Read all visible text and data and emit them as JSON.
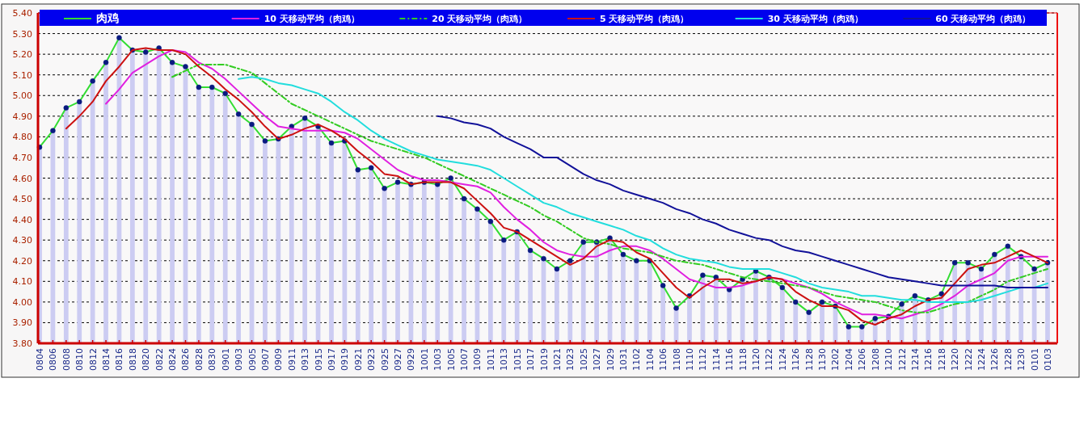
{
  "chart_data": {
    "type": "line",
    "categories": [
      "0804",
      "0806",
      "0808",
      "0810",
      "0812",
      "0814",
      "0816",
      "0818",
      "0820",
      "0822",
      "0824",
      "0826",
      "0828",
      "0830",
      "0901",
      "0903",
      "0905",
      "0907",
      "0909",
      "0911",
      "0913",
      "0915",
      "0917",
      "0919",
      "0921",
      "0923",
      "0925",
      "0927",
      "0929",
      "1001",
      "1003",
      "1005",
      "1007",
      "1009",
      "1011",
      "1013",
      "1015",
      "1017",
      "1019",
      "1021",
      "1023",
      "1025",
      "1027",
      "1029",
      "1031",
      "1102",
      "1104",
      "1106",
      "1108",
      "1110",
      "1112",
      "1114",
      "1116",
      "1118",
      "1120",
      "1122",
      "1124",
      "1126",
      "1128",
      "1130",
      "1202",
      "1204",
      "1206",
      "1208",
      "1210",
      "1212",
      "1214",
      "1216",
      "1218",
      "1220",
      "1222",
      "1224",
      "1226",
      "1228",
      "1230",
      "0101",
      "0103"
    ],
    "ylim": [
      3.8,
      5.4
    ],
    "yticks": [
      {
        "value": 3.8,
        "label": "3.80"
      },
      {
        "value": 3.9,
        "label": "3.90"
      },
      {
        "value": 4.0,
        "label": "4.00"
      },
      {
        "value": 4.1,
        "label": "4.10"
      },
      {
        "value": 4.2,
        "label": "4.20"
      },
      {
        "value": 4.3,
        "label": "4.30"
      },
      {
        "value": 4.4,
        "label": "4.40"
      },
      {
        "value": 4.5,
        "label": "4.50"
      },
      {
        "value": 4.6,
        "label": "4.60"
      },
      {
        "value": 4.7,
        "label": "4.70"
      },
      {
        "value": 4.8,
        "label": "4.80"
      },
      {
        "value": 4.9,
        "label": "4.90"
      },
      {
        "value": 5.0,
        "label": "5.00"
      },
      {
        "value": 5.1,
        "label": "5.10"
      },
      {
        "value": 5.2,
        "label": "5.20"
      },
      {
        "value": 5.3,
        "label": "5.30"
      },
      {
        "value": 5.4,
        "label": "5.40"
      }
    ],
    "grid": "y",
    "legend": "top",
    "series": [
      {
        "type": "bar",
        "color": "#ccccf2",
        "values": [
          4.75,
          4.83,
          4.94,
          4.97,
          5.07,
          5.16,
          5.28,
          5.22,
          5.21,
          5.23,
          5.16,
          5.14,
          5.04,
          5.04,
          5.01,
          4.91,
          4.86,
          4.78,
          4.79,
          4.85,
          4.89,
          4.85,
          4.77,
          4.78,
          4.64,
          4.65,
          4.55,
          4.58,
          4.57,
          4.58,
          4.57,
          4.6,
          4.5,
          4.45,
          4.39,
          4.3,
          4.34,
          4.25,
          4.21,
          4.16,
          4.2,
          4.29,
          4.29,
          4.31,
          4.23,
          4.2,
          4.2,
          4.08,
          3.97,
          4.03,
          4.13,
          4.12,
          4.06,
          4.11,
          4.15,
          4.12,
          4.07,
          4.0,
          3.95,
          4.0,
          3.98,
          3.88,
          3.88,
          3.92,
          3.93,
          3.99,
          4.03,
          4.01,
          4.04,
          4.19,
          4.19,
          4.16,
          4.23,
          4.27,
          4.22,
          4.16,
          4.19
        ]
      },
      {
        "name": "肉鸡",
        "color": "#33dd33",
        "marker": "circle",
        "line_style": "solid",
        "values": [
          4.75,
          4.83,
          4.94,
          4.97,
          5.07,
          5.16,
          5.28,
          5.22,
          5.21,
          5.23,
          5.16,
          5.14,
          5.04,
          5.04,
          5.01,
          4.91,
          4.86,
          4.78,
          4.79,
          4.85,
          4.89,
          4.85,
          4.77,
          4.78,
          4.64,
          4.65,
          4.55,
          4.58,
          4.57,
          4.58,
          4.57,
          4.6,
          4.5,
          4.45,
          4.39,
          4.3,
          4.34,
          4.25,
          4.21,
          4.16,
          4.2,
          4.29,
          4.29,
          4.31,
          4.23,
          4.2,
          4.2,
          4.08,
          3.97,
          4.03,
          4.13,
          4.12,
          4.06,
          4.11,
          4.15,
          4.12,
          4.07,
          4.0,
          3.95,
          4.0,
          3.98,
          3.88,
          3.88,
          3.92,
          3.93,
          3.99,
          4.03,
          4.01,
          4.04,
          4.19,
          4.19,
          4.16,
          4.23,
          4.27,
          4.22,
          4.16,
          4.19
        ]
      },
      {
        "name": "10 天移动平均（肉鸡）",
        "color": "#e020e0",
        "line_style": "solid",
        "values": [
          null,
          null,
          null,
          null,
          null,
          4.96,
          5.03,
          5.11,
          5.15,
          5.19,
          5.22,
          5.21,
          5.16,
          5.13,
          5.08,
          5.02,
          4.96,
          4.9,
          4.85,
          4.84,
          4.83,
          4.83,
          4.83,
          4.82,
          4.79,
          4.74,
          4.69,
          4.64,
          4.61,
          4.59,
          4.59,
          4.58,
          4.57,
          4.56,
          4.53,
          4.46,
          4.4,
          4.35,
          4.29,
          4.25,
          4.23,
          4.22,
          4.22,
          4.25,
          4.27,
          4.27,
          4.25,
          4.21,
          4.16,
          4.11,
          4.09,
          4.07,
          4.07,
          4.08,
          4.1,
          4.12,
          4.11,
          4.09,
          4.07,
          4.04,
          4.0,
          3.97,
          3.94,
          3.94,
          3.93,
          3.92,
          3.94,
          3.96,
          3.99,
          4.03,
          4.08,
          4.11,
          4.14,
          4.2,
          4.22,
          4.22,
          4.22
        ]
      },
      {
        "name": "20 天移动平均（肉鸡）",
        "color": "#33cc22",
        "line_style": "dashed",
        "values": [
          null,
          null,
          null,
          null,
          null,
          null,
          null,
          null,
          null,
          null,
          5.09,
          5.12,
          5.15,
          5.15,
          5.15,
          5.13,
          5.11,
          5.06,
          5.01,
          4.96,
          4.93,
          4.9,
          4.87,
          4.84,
          4.81,
          4.78,
          4.76,
          4.74,
          4.72,
          4.7,
          4.67,
          4.64,
          4.61,
          4.58,
          4.55,
          4.52,
          4.49,
          4.46,
          4.42,
          4.39,
          4.35,
          4.31,
          4.29,
          4.28,
          4.26,
          4.25,
          4.24,
          4.22,
          4.2,
          4.19,
          4.18,
          4.16,
          4.14,
          4.12,
          4.11,
          4.1,
          4.09,
          4.08,
          4.07,
          4.05,
          4.03,
          4.02,
          4.01,
          4.0,
          3.98,
          3.96,
          3.95,
          3.95,
          3.97,
          3.99,
          4.0,
          4.03,
          4.06,
          4.1,
          4.12,
          4.14,
          4.16
        ]
      },
      {
        "name": "5 天移动平均（肉鸡）",
        "color": "#cc1111",
        "line_style": "solid",
        "values": [
          null,
          null,
          4.84,
          4.9,
          4.97,
          5.07,
          5.14,
          5.22,
          5.23,
          5.22,
          5.22,
          5.2,
          5.14,
          5.09,
          5.03,
          4.98,
          4.92,
          4.85,
          4.79,
          4.81,
          4.84,
          4.86,
          4.83,
          4.79,
          4.73,
          4.68,
          4.62,
          4.61,
          4.57,
          4.58,
          4.58,
          4.58,
          4.55,
          4.49,
          4.43,
          4.36,
          4.34,
          4.3,
          4.26,
          4.22,
          4.18,
          4.21,
          4.27,
          4.3,
          4.29,
          4.24,
          4.21,
          4.14,
          4.07,
          4.02,
          4.07,
          4.11,
          4.11,
          4.09,
          4.1,
          4.12,
          4.11,
          4.05,
          4.01,
          3.98,
          3.98,
          3.96,
          3.91,
          3.89,
          3.92,
          3.94,
          3.98,
          4.01,
          4.02,
          4.09,
          4.16,
          4.18,
          4.19,
          4.22,
          4.25,
          4.22,
          4.19
        ]
      },
      {
        "name": "30 天移动平均（肉鸡）",
        "color": "#22dddd",
        "line_style": "solid",
        "values": [
          null,
          null,
          null,
          null,
          null,
          null,
          null,
          null,
          null,
          null,
          null,
          null,
          null,
          null,
          null,
          5.08,
          5.09,
          5.08,
          5.06,
          5.05,
          5.03,
          5.01,
          4.97,
          4.92,
          4.88,
          4.83,
          4.79,
          4.76,
          4.73,
          4.71,
          4.69,
          4.68,
          4.67,
          4.66,
          4.64,
          4.6,
          4.56,
          4.52,
          4.48,
          4.46,
          4.43,
          4.41,
          4.39,
          4.37,
          4.35,
          4.32,
          4.3,
          4.26,
          4.23,
          4.21,
          4.2,
          4.19,
          4.17,
          4.16,
          4.16,
          4.16,
          4.14,
          4.12,
          4.09,
          4.07,
          4.06,
          4.05,
          4.03,
          4.03,
          4.02,
          4.01,
          4.01,
          4.0,
          4.0,
          4.0,
          4.0,
          4.01,
          4.03,
          4.05,
          4.07,
          4.07,
          4.09
        ]
      },
      {
        "name": "60 天移动平均（肉鸡）",
        "color": "#111199",
        "line_style": "solid",
        "values": [
          null,
          null,
          null,
          null,
          null,
          null,
          null,
          null,
          null,
          null,
          null,
          null,
          null,
          null,
          null,
          null,
          null,
          null,
          null,
          null,
          null,
          null,
          null,
          null,
          null,
          null,
          null,
          null,
          null,
          null,
          4.9,
          4.89,
          4.87,
          4.86,
          4.84,
          4.8,
          4.77,
          4.74,
          4.7,
          4.7,
          4.66,
          4.62,
          4.59,
          4.57,
          4.54,
          4.52,
          4.5,
          4.48,
          4.45,
          4.43,
          4.4,
          4.38,
          4.35,
          4.33,
          4.31,
          4.3,
          4.27,
          4.25,
          4.24,
          4.22,
          4.2,
          4.18,
          4.16,
          4.14,
          4.12,
          4.11,
          4.1,
          4.09,
          4.08,
          4.08,
          4.08,
          4.08,
          4.08,
          4.07,
          4.07,
          4.07,
          4.07
        ]
      }
    ]
  }
}
